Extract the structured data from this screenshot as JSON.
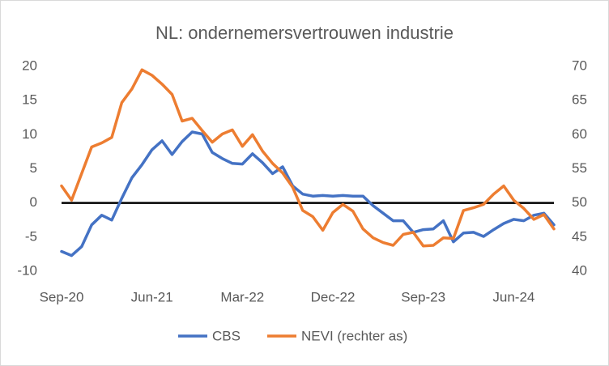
{
  "chart_data": {
    "type": "line",
    "title": "NL: ondernemersvertrouwen industrie",
    "categories": [
      "Sep-20",
      null,
      null,
      null,
      null,
      null,
      null,
      null,
      null,
      "Jun-21",
      null,
      null,
      null,
      null,
      null,
      null,
      null,
      null,
      "Mar-22",
      null,
      null,
      null,
      null,
      null,
      null,
      null,
      null,
      "Dec-22",
      null,
      null,
      null,
      null,
      null,
      null,
      null,
      null,
      "Sep-23",
      null,
      null,
      null,
      null,
      null,
      null,
      null,
      null,
      "Jun-24",
      null,
      null,
      null,
      null
    ],
    "series": [
      {
        "name": "CBS",
        "color": "#4472c4",
        "axis": "y",
        "values": [
          -7.1,
          -7.7,
          -6.4,
          -3.2,
          -1.8,
          -2.5,
          0.7,
          3.7,
          5.6,
          7.8,
          9.1,
          7.1,
          9.0,
          10.4,
          10.1,
          7.4,
          6.5,
          5.8,
          5.7,
          7.2,
          5.9,
          4.3,
          5.3,
          2.5,
          1.3,
          1.0,
          1.1,
          1.0,
          1.1,
          1.0,
          1.0,
          -0.4,
          -1.5,
          -2.6,
          -2.6,
          -4.3,
          -3.9,
          -3.8,
          -2.6,
          -5.7,
          -4.4,
          -4.3,
          -4.9,
          -3.9,
          -3.0,
          -2.4,
          -2.6,
          -1.8,
          -1.5,
          -3.2
        ]
      },
      {
        "name": "NEVI (rechter as)",
        "color": "#ed7d31",
        "axis": "y2",
        "values": [
          52.5,
          50.4,
          54.3,
          58.2,
          58.8,
          59.6,
          64.7,
          66.7,
          69.5,
          68.7,
          67.4,
          65.9,
          62.0,
          62.4,
          60.6,
          58.9,
          60.1,
          60.7,
          58.3,
          60.0,
          57.6,
          55.8,
          54.4,
          52.3,
          48.9,
          48.0,
          46.0,
          48.6,
          49.8,
          48.8,
          46.2,
          44.9,
          44.2,
          43.8,
          45.4,
          45.7,
          43.7,
          43.8,
          44.9,
          44.8,
          48.9,
          49.3,
          49.8,
          51.3,
          52.5,
          50.4,
          49.2,
          47.6,
          48.3,
          46.2
        ]
      }
    ],
    "ylim": [
      -10,
      20
    ],
    "yticks": [
      -10,
      -5,
      0,
      5,
      10,
      15,
      20
    ],
    "y2lim": [
      40,
      70
    ],
    "y2ticks": [
      40,
      45,
      50,
      55,
      60,
      65,
      70
    ],
    "grid": false,
    "legend": "bottom"
  }
}
